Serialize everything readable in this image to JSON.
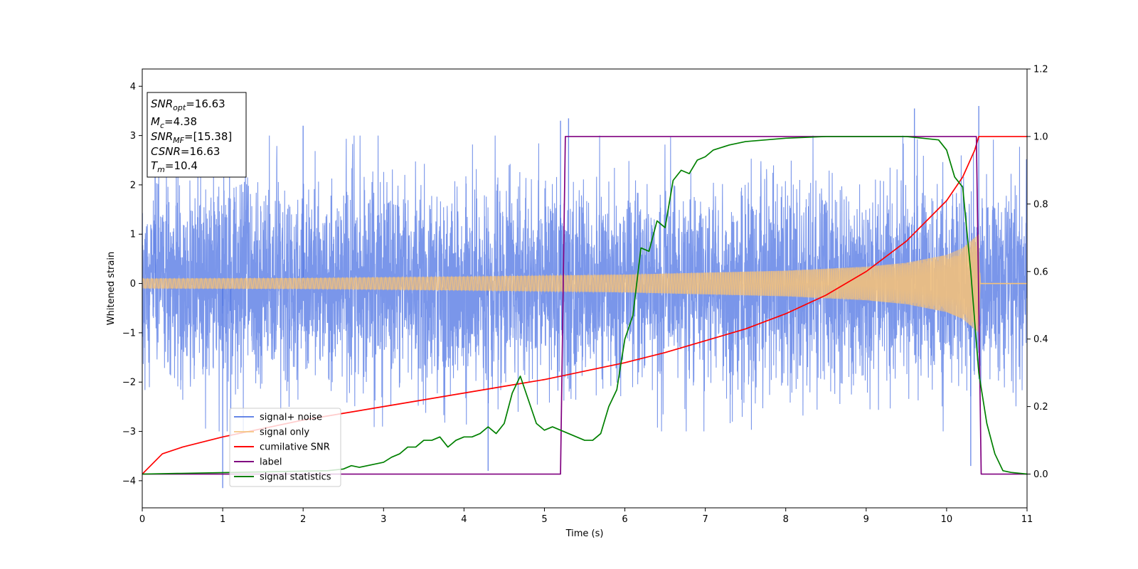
{
  "chart_data": {
    "type": "line",
    "title": "",
    "xlabel": "Time (s)",
    "ylabel": "Whitened strain",
    "xlim": [
      0,
      11
    ],
    "ylim_left": [
      -4.55,
      4.35
    ],
    "ylim_right": [
      -0.1,
      1.2
    ],
    "x_ticks": [
      0,
      1,
      2,
      3,
      4,
      5,
      6,
      7,
      8,
      9,
      10,
      11
    ],
    "y_ticks_left": [
      -4,
      -3,
      -2,
      -1,
      0,
      1,
      2,
      3,
      4
    ],
    "y_ticks_right": [
      "0.0",
      "0.2",
      "0.4",
      "0.6",
      "0.8",
      "1.0",
      "1.2"
    ],
    "grid": false,
    "legend_position": "lower-left",
    "legend": [
      {
        "label": "signal+ noise",
        "color": "#4169e1"
      },
      {
        "label": "signal only",
        "color": "#f5c27a"
      },
      {
        "label": "cumilative SNR",
        "color": "#ff0000"
      },
      {
        "label": "label",
        "color": "#800080"
      },
      {
        "label": "signal statistics",
        "color": "#008000"
      }
    ],
    "info_box": [
      {
        "main": "SNR",
        "sub": "opt",
        "value": "=16.63"
      },
      {
        "main": "M",
        "sub": "c",
        "value": "=4.38"
      },
      {
        "main": "SNR",
        "sub": "MF",
        "value": "=[15.38]"
      },
      {
        "main": "CSNR",
        "sub": "",
        "value": "=16.63"
      },
      {
        "main": "T",
        "sub": "m",
        "value": "=10.4"
      }
    ],
    "series": [
      {
        "name": "signal+ noise",
        "axis": "left",
        "style": "noise",
        "color": "#4169e1",
        "envelope_sigma": 1.0,
        "notable_peaks": [
          [
            0.16,
            2.3
          ],
          [
            1.0,
            -4.15
          ],
          [
            1.1,
            -3.1
          ],
          [
            2.0,
            3.2
          ],
          [
            4.3,
            -3.8
          ],
          [
            5.2,
            3.3
          ],
          [
            5.3,
            3.35
          ],
          [
            9.6,
            3.55
          ],
          [
            10.3,
            -3.7
          ],
          [
            10.4,
            3.6
          ]
        ]
      },
      {
        "name": "signal only",
        "axis": "left",
        "style": "chirp",
        "color": "#f5c27a",
        "amplitude_envelope": [
          [
            0,
            0.1
          ],
          [
            2,
            0.11
          ],
          [
            4,
            0.14
          ],
          [
            6,
            0.18
          ],
          [
            8,
            0.26
          ],
          [
            9,
            0.34
          ],
          [
            9.5,
            0.42
          ],
          [
            10,
            0.58
          ],
          [
            10.2,
            0.72
          ],
          [
            10.35,
            0.93
          ],
          [
            10.4,
            1.0
          ],
          [
            10.42,
            0.0
          ],
          [
            11,
            0.0
          ]
        ]
      },
      {
        "name": "cumilative SNR",
        "axis": "right",
        "color": "#ff0000",
        "x": [
          0,
          0.25,
          0.5,
          1.0,
          1.5,
          2.0,
          2.5,
          3.0,
          3.5,
          4.0,
          4.5,
          5.0,
          5.5,
          6.0,
          6.5,
          7.0,
          7.5,
          8.0,
          8.5,
          9.0,
          9.5,
          10.0,
          10.2,
          10.35,
          10.4,
          11.0
        ],
        "y": [
          0.0,
          0.06,
          0.08,
          0.11,
          0.135,
          0.16,
          0.18,
          0.2,
          0.22,
          0.24,
          0.26,
          0.28,
          0.305,
          0.33,
          0.36,
          0.395,
          0.43,
          0.475,
          0.53,
          0.6,
          0.69,
          0.81,
          0.88,
          0.96,
          1.0,
          1.0
        ]
      },
      {
        "name": "label",
        "axis": "right",
        "color": "#800080",
        "x": [
          0,
          5.2,
          5.26,
          10.37,
          10.43,
          11.0
        ],
        "y": [
          0.0,
          0.0,
          1.0,
          1.0,
          0.0,
          0.0
        ]
      },
      {
        "name": "signal statistics",
        "axis": "right",
        "color": "#008000",
        "x": [
          0,
          2.3,
          2.5,
          2.6,
          2.7,
          2.9,
          3.0,
          3.1,
          3.2,
          3.3,
          3.4,
          3.5,
          3.6,
          3.7,
          3.8,
          3.9,
          4.0,
          4.1,
          4.2,
          4.3,
          4.4,
          4.5,
          4.6,
          4.7,
          4.8,
          4.9,
          5.0,
          5.1,
          5.2,
          5.3,
          5.4,
          5.5,
          5.6,
          5.7,
          5.8,
          5.9,
          6.0,
          6.1,
          6.2,
          6.3,
          6.4,
          6.5,
          6.6,
          6.7,
          6.8,
          6.9,
          7.0,
          7.1,
          7.3,
          7.5,
          8.0,
          8.5,
          9.0,
          9.5,
          9.9,
          10.0,
          10.1,
          10.2,
          10.3,
          10.4,
          10.5,
          10.6,
          10.7,
          10.8,
          11.0
        ],
        "y": [
          0.0,
          0.01,
          0.015,
          0.025,
          0.02,
          0.03,
          0.035,
          0.05,
          0.06,
          0.08,
          0.08,
          0.1,
          0.1,
          0.11,
          0.08,
          0.1,
          0.11,
          0.11,
          0.12,
          0.14,
          0.12,
          0.15,
          0.24,
          0.29,
          0.22,
          0.15,
          0.13,
          0.14,
          0.13,
          0.12,
          0.11,
          0.1,
          0.1,
          0.12,
          0.2,
          0.25,
          0.4,
          0.47,
          0.67,
          0.66,
          0.75,
          0.73,
          0.87,
          0.9,
          0.89,
          0.93,
          0.94,
          0.96,
          0.975,
          0.985,
          0.995,
          1.0,
          1.0,
          1.0,
          0.99,
          0.96,
          0.88,
          0.85,
          0.6,
          0.3,
          0.15,
          0.06,
          0.01,
          0.005,
          0.0
        ]
      }
    ]
  }
}
